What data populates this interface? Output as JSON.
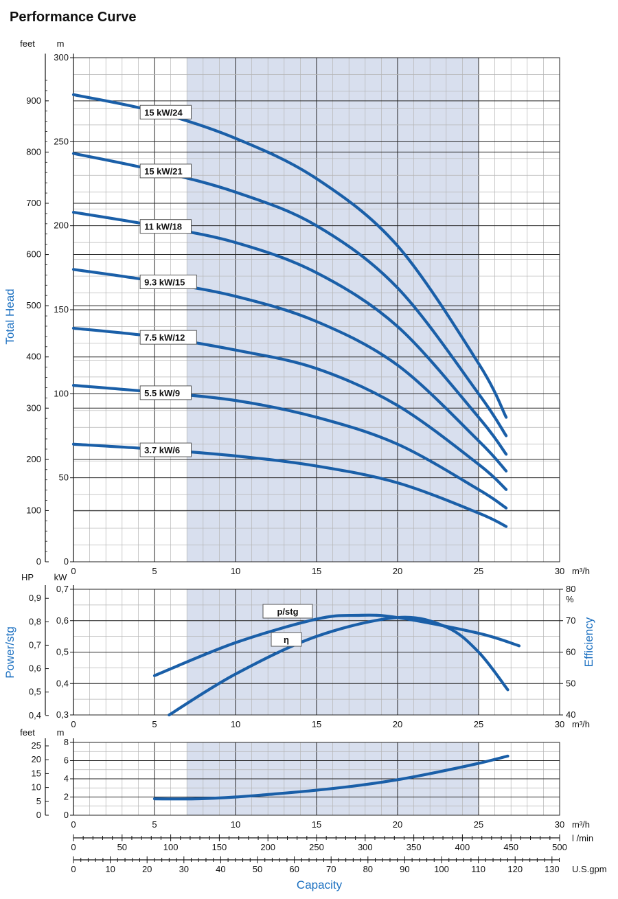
{
  "title": "Performance Curve",
  "chart_data": [
    {
      "type": "line",
      "panel": "head",
      "xlabel": "m³/h",
      "xlim": [
        0,
        30
      ],
      "x_ticks": [
        "0",
        "5",
        "10",
        "15",
        "20",
        "25",
        "30"
      ],
      "ylabel": "Total Head",
      "y_unit_left": "feet",
      "y_unit_right": "m",
      "ylim": [
        0,
        300
      ],
      "y_ticks_m": [
        "0",
        "50",
        "100",
        "150",
        "200",
        "250",
        "300"
      ],
      "y_ticks_feet": [
        "0",
        "100",
        "200",
        "300",
        "400",
        "500",
        "600",
        "700",
        "800",
        "900"
      ],
      "shaded_range": [
        7,
        25
      ],
      "grid": true,
      "series": [
        {
          "name": "15 kW/24",
          "x": [
            0,
            5,
            10,
            15,
            20,
            25,
            26.7
          ],
          "y": [
            278,
            268,
            252,
            228,
            188,
            118,
            86
          ]
        },
        {
          "name": "15 kW/21",
          "x": [
            0,
            5,
            10,
            15,
            20,
            25,
            26.7
          ],
          "y": [
            243,
            233,
            220,
            200,
            163,
            100,
            75
          ]
        },
        {
          "name": "11 kW/18",
          "x": [
            0,
            5,
            10,
            15,
            20,
            25,
            26.7
          ],
          "y": [
            208,
            200,
            190,
            172,
            140,
            86,
            64
          ]
        },
        {
          "name": "9.3 kW/15",
          "x": [
            0,
            5,
            10,
            15,
            20,
            25,
            26.7
          ],
          "y": [
            174,
            167,
            158,
            143,
            117,
            72,
            54
          ]
        },
        {
          "name": "7.5 kW/12",
          "x": [
            0,
            5,
            10,
            15,
            20,
            25,
            26.7
          ],
          "y": [
            139,
            134,
            126,
            115,
            93,
            58,
            43
          ]
        },
        {
          "name": "5.5 kW/9",
          "x": [
            0,
            5,
            10,
            15,
            20,
            25,
            26.7
          ],
          "y": [
            105,
            101,
            96,
            86,
            70,
            43,
            32
          ]
        },
        {
          "name": "3.7 kW/6",
          "x": [
            0,
            5,
            10,
            15,
            20,
            25,
            26.7
          ],
          "y": [
            70,
            67,
            63,
            57,
            47,
            29,
            21
          ]
        }
      ]
    },
    {
      "type": "line",
      "panel": "power-efficiency",
      "xlabel": "m³/h",
      "xlim": [
        0,
        30
      ],
      "x_ticks": [
        "0",
        "5",
        "10",
        "15",
        "20",
        "25",
        "30"
      ],
      "ylabel_left": "Power/stg",
      "y_unit_left_hp": "HP",
      "y_unit_left_kw": "kW",
      "ylim_kw": [
        0.3,
        0.7
      ],
      "y_ticks_kw": [
        "0,3",
        "0,4",
        "0,5",
        "0,6",
        "0,7"
      ],
      "y_ticks_hp": [
        "0,4",
        "0,5",
        "0,6",
        "0,7",
        "0,8",
        "0,9"
      ],
      "ylabel_right": "Efficiency",
      "y_unit_right": "%",
      "ylim_pct": [
        40,
        80
      ],
      "y_ticks_pct": [
        "40",
        "50",
        "60",
        "70",
        "80"
      ],
      "shaded_range": [
        7,
        25
      ],
      "grid": true,
      "series": [
        {
          "name": "p/stg",
          "axis": "kw",
          "x": [
            5,
            10,
            15,
            17.5,
            20,
            25,
            27.5
          ],
          "y": [
            0.425,
            0.53,
            0.605,
            0.617,
            0.61,
            0.56,
            0.52
          ]
        },
        {
          "name": "η",
          "axis": "pct",
          "x": [
            5.9,
            10,
            15,
            20,
            23,
            25,
            26.8
          ],
          "y": [
            40,
            53,
            65,
            71,
            68,
            60,
            48
          ]
        }
      ]
    },
    {
      "type": "line",
      "panel": "npsh",
      "xlabel": "m³/h",
      "xlim": [
        0,
        30
      ],
      "x_ticks": [
        "0",
        "5",
        "10",
        "15",
        "20",
        "25",
        "30"
      ],
      "y_unit_left": "feet",
      "y_unit_right": "m",
      "ylim": [
        0,
        8
      ],
      "y_ticks_m": [
        "0",
        "2",
        "4",
        "6",
        "8"
      ],
      "y_ticks_feet": [
        "0",
        "5",
        "10",
        "15",
        "20",
        "25"
      ],
      "shaded_range": [
        7,
        25
      ],
      "grid": true,
      "series": [
        {
          "name": "NPSH",
          "x": [
            5,
            7.5,
            10,
            12.5,
            15,
            17.5,
            20,
            22.5,
            25,
            26.8
          ],
          "y": [
            1.8,
            1.8,
            2.0,
            2.35,
            2.75,
            3.25,
            3.9,
            4.75,
            5.7,
            6.5
          ]
        }
      ]
    },
    {
      "type": "axis",
      "panel": "capacity-scales",
      "xlabel": "Capacity",
      "lpm_unit": "l /min",
      "lpm_ticks": [
        "0",
        "50",
        "100",
        "150",
        "200",
        "250",
        "300",
        "350",
        "400",
        "450",
        "500"
      ],
      "gpm_unit": "U.S.gpm",
      "gpm_ticks": [
        "0",
        "10",
        "20",
        "30",
        "40",
        "50",
        "60",
        "70",
        "80",
        "90",
        "100",
        "110",
        "120",
        "130"
      ]
    }
  ],
  "colors": {
    "curve": "#1a5fa8",
    "shade": "#d8dfee",
    "axis_title": "#1a6fc0",
    "grid_major": "#222222",
    "grid_minor": "#b5b5b5",
    "label_box_border": "#555555"
  }
}
